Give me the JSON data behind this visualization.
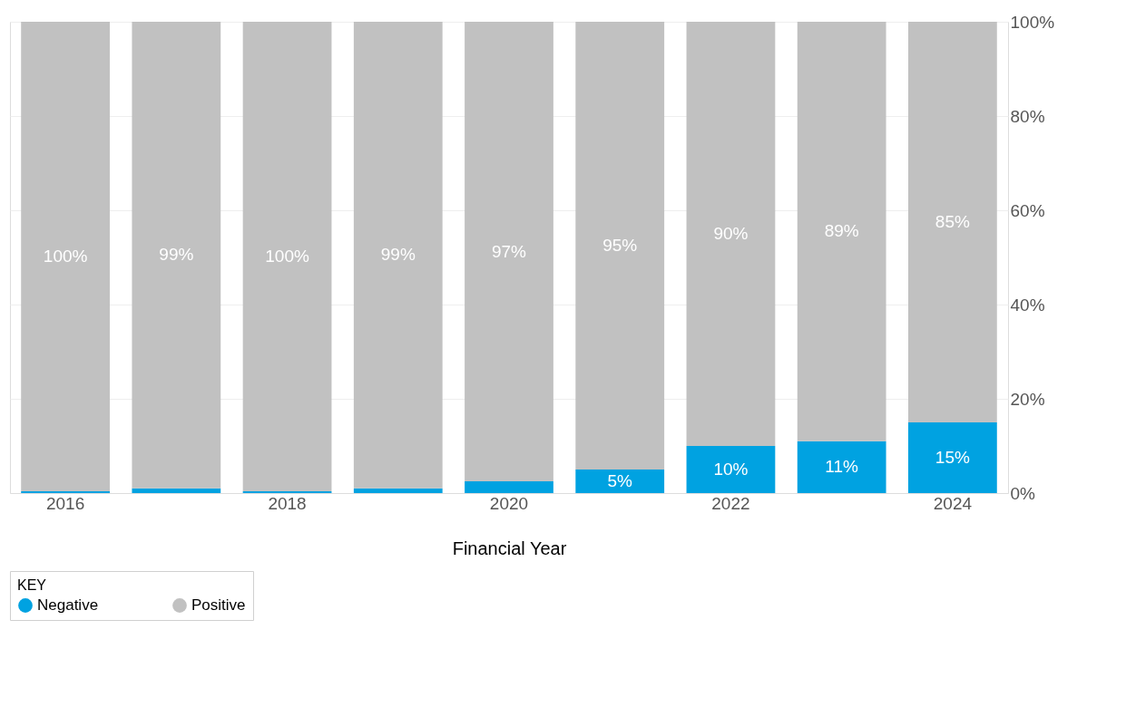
{
  "chart_data": {
    "type": "bar",
    "stacked": true,
    "xlabel": "Financial Year",
    "legend_title": "KEY",
    "legend": "bottom left",
    "grid": "y",
    "categories": [
      "2016",
      null,
      "2018",
      null,
      "2020",
      null,
      "2022",
      null,
      "2024"
    ],
    "ylim": [
      0,
      100
    ],
    "yticks": [
      {
        "value": 0,
        "label": "0%"
      },
      {
        "value": 20,
        "label": "20%"
      },
      {
        "value": 40,
        "label": "40%"
      },
      {
        "value": 60,
        "label": "60%"
      },
      {
        "value": 80,
        "label": "80%"
      },
      {
        "value": 100,
        "label": "100%"
      }
    ],
    "series": [
      {
        "name": "Negative",
        "color": "#00a2e1",
        "values": [
          0.4,
          1,
          0.4,
          1,
          2.5,
          5,
          10,
          11,
          15
        ],
        "value_labels": [
          null,
          null,
          null,
          null,
          null,
          "5%",
          "10%",
          "11%",
          "15%"
        ]
      },
      {
        "name": "Positive",
        "color": "#c1c1c1",
        "values": [
          99.6,
          99,
          99.6,
          99,
          97.5,
          95,
          90,
          89,
          85
        ],
        "value_labels": [
          "100%",
          "99%",
          "100%",
          "99%",
          "97%",
          "95%",
          "90%",
          "89%",
          "85%"
        ]
      }
    ]
  }
}
